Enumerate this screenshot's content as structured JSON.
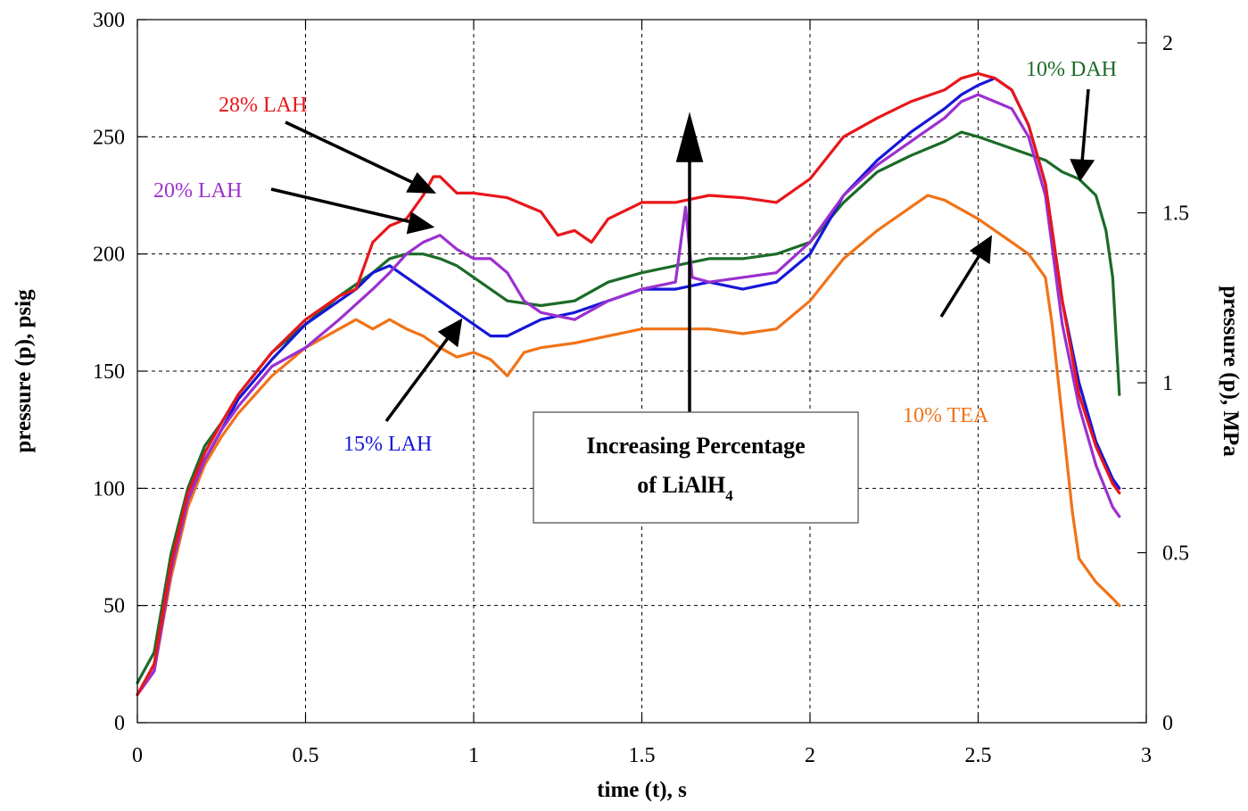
{
  "chart_data": {
    "type": "line",
    "xlabel": "time (t), s",
    "ylabel": "pressure (p), psig",
    "ylabel_right": "pressure (p), MPa",
    "xlim": [
      0,
      3
    ],
    "ylim": [
      0,
      300
    ],
    "ylim_right": [
      0,
      2.0684
    ],
    "x_ticks": [
      "0",
      "0.5",
      "1",
      "1.5",
      "2",
      "2.5",
      "3"
    ],
    "y_ticks": [
      "0",
      "50",
      "100",
      "150",
      "200",
      "250",
      "300"
    ],
    "y_right_ticks": [
      "0",
      "0.5",
      "1",
      "1.5",
      "2"
    ],
    "grid": true,
    "series": [
      {
        "label": "28% LAH",
        "color": "#e8161b",
        "x": [
          0,
          0.05,
          0.1,
          0.15,
          0.2,
          0.25,
          0.3,
          0.4,
          0.5,
          0.6,
          0.65,
          0.7,
          0.75,
          0.8,
          0.85,
          0.88,
          0.9,
          0.95,
          1.0,
          1.1,
          1.2,
          1.25,
          1.3,
          1.35,
          1.4,
          1.5,
          1.6,
          1.7,
          1.8,
          1.9,
          2.0,
          2.1,
          2.2,
          2.3,
          2.4,
          2.45,
          2.5,
          2.55,
          2.6,
          2.65,
          2.7,
          2.75,
          2.8,
          2.85,
          2.9,
          2.92
        ],
        "y": [
          12,
          25,
          68,
          98,
          115,
          128,
          140,
          158,
          172,
          182,
          185,
          205,
          212,
          215,
          225,
          233,
          233,
          226,
          226,
          224,
          218,
          208,
          210,
          205,
          215,
          222,
          222,
          225,
          224,
          222,
          232,
          250,
          258,
          265,
          270,
          275,
          277,
          275,
          270,
          255,
          230,
          180,
          140,
          118,
          102,
          98
        ]
      },
      {
        "label": "20% LAH",
        "color": "#9b30d0",
        "x": [
          0,
          0.05,
          0.1,
          0.15,
          0.2,
          0.25,
          0.3,
          0.4,
          0.5,
          0.6,
          0.7,
          0.75,
          0.8,
          0.85,
          0.9,
          0.95,
          1.0,
          1.05,
          1.1,
          1.15,
          1.2,
          1.3,
          1.4,
          1.5,
          1.6,
          1.63,
          1.65,
          1.7,
          1.8,
          1.9,
          2.0,
          2.1,
          2.2,
          2.3,
          2.4,
          2.45,
          2.5,
          2.55,
          2.6,
          2.65,
          2.7,
          2.75,
          2.8,
          2.85,
          2.9,
          2.92
        ],
        "y": [
          12,
          22,
          65,
          95,
          112,
          125,
          135,
          152,
          160,
          172,
          185,
          192,
          200,
          205,
          208,
          202,
          198,
          198,
          192,
          180,
          175,
          172,
          180,
          185,
          188,
          220,
          190,
          188,
          190,
          192,
          205,
          225,
          238,
          248,
          258,
          265,
          268,
          265,
          262,
          250,
          225,
          170,
          135,
          110,
          92,
          88
        ]
      },
      {
        "label": "15% LAH",
        "color": "#1616d8",
        "x": [
          0,
          0.05,
          0.1,
          0.15,
          0.2,
          0.25,
          0.3,
          0.4,
          0.5,
          0.6,
          0.65,
          0.7,
          0.75,
          0.8,
          0.85,
          0.9,
          0.95,
          1.0,
          1.05,
          1.1,
          1.2,
          1.3,
          1.4,
          1.5,
          1.6,
          1.7,
          1.8,
          1.9,
          2.0,
          2.1,
          2.2,
          2.3,
          2.4,
          2.45,
          2.5,
          2.55,
          2.6,
          2.65,
          2.7,
          2.75,
          2.8,
          2.85,
          2.9,
          2.92
        ],
        "y": [
          12,
          22,
          65,
          95,
          112,
          125,
          138,
          155,
          170,
          180,
          185,
          192,
          195,
          190,
          185,
          180,
          175,
          170,
          165,
          165,
          172,
          175,
          180,
          185,
          185,
          188,
          185,
          188,
          200,
          225,
          240,
          252,
          262,
          268,
          272,
          275,
          270,
          255,
          230,
          180,
          145,
          120,
          104,
          100
        ]
      },
      {
        "label": "10% DAH",
        "color": "#1b6b27",
        "x": [
          0,
          0.05,
          0.1,
          0.15,
          0.2,
          0.25,
          0.3,
          0.4,
          0.5,
          0.6,
          0.7,
          0.75,
          0.8,
          0.85,
          0.9,
          0.95,
          1.0,
          1.1,
          1.2,
          1.3,
          1.4,
          1.5,
          1.6,
          1.7,
          1.8,
          1.9,
          2.0,
          2.1,
          2.2,
          2.3,
          2.4,
          2.45,
          2.5,
          2.6,
          2.7,
          2.75,
          2.8,
          2.85,
          2.88,
          2.9,
          2.92
        ],
        "y": [
          17,
          30,
          72,
          100,
          118,
          128,
          140,
          158,
          170,
          182,
          192,
          198,
          200,
          200,
          198,
          195,
          190,
          180,
          178,
          180,
          188,
          192,
          195,
          198,
          198,
          200,
          205,
          222,
          235,
          242,
          248,
          252,
          250,
          245,
          240,
          235,
          232,
          225,
          210,
          190,
          140
        ]
      },
      {
        "label": "10% TEA",
        "color": "#f07318",
        "x": [
          0,
          0.05,
          0.1,
          0.15,
          0.2,
          0.25,
          0.3,
          0.4,
          0.5,
          0.6,
          0.65,
          0.7,
          0.75,
          0.8,
          0.85,
          0.9,
          0.95,
          1.0,
          1.05,
          1.1,
          1.15,
          1.2,
          1.3,
          1.4,
          1.5,
          1.6,
          1.7,
          1.8,
          1.9,
          2.0,
          2.1,
          2.2,
          2.3,
          2.35,
          2.4,
          2.5,
          2.6,
          2.65,
          2.7,
          2.72,
          2.75,
          2.78,
          2.8,
          2.85,
          2.9,
          2.92
        ],
        "y": [
          12,
          22,
          62,
          92,
          110,
          122,
          132,
          148,
          160,
          168,
          172,
          168,
          172,
          168,
          165,
          160,
          156,
          158,
          155,
          148,
          158,
          160,
          162,
          165,
          168,
          168,
          168,
          166,
          168,
          180,
          198,
          210,
          220,
          225,
          223,
          215,
          205,
          200,
          190,
          170,
          130,
          90,
          70,
          60,
          53,
          50
        ]
      }
    ],
    "annotations": [
      {
        "text": "28% LAH",
        "series": 0
      },
      {
        "text": "20% LAH",
        "series": 1
      },
      {
        "text": "15% LAH",
        "series": 2
      },
      {
        "text": "10% DAH",
        "series": 3
      },
      {
        "text": "10% TEA",
        "series": 4
      }
    ],
    "note": {
      "line1": "Increasing Percentage",
      "line2": "of LiAlH",
      "subscript": "4"
    }
  }
}
